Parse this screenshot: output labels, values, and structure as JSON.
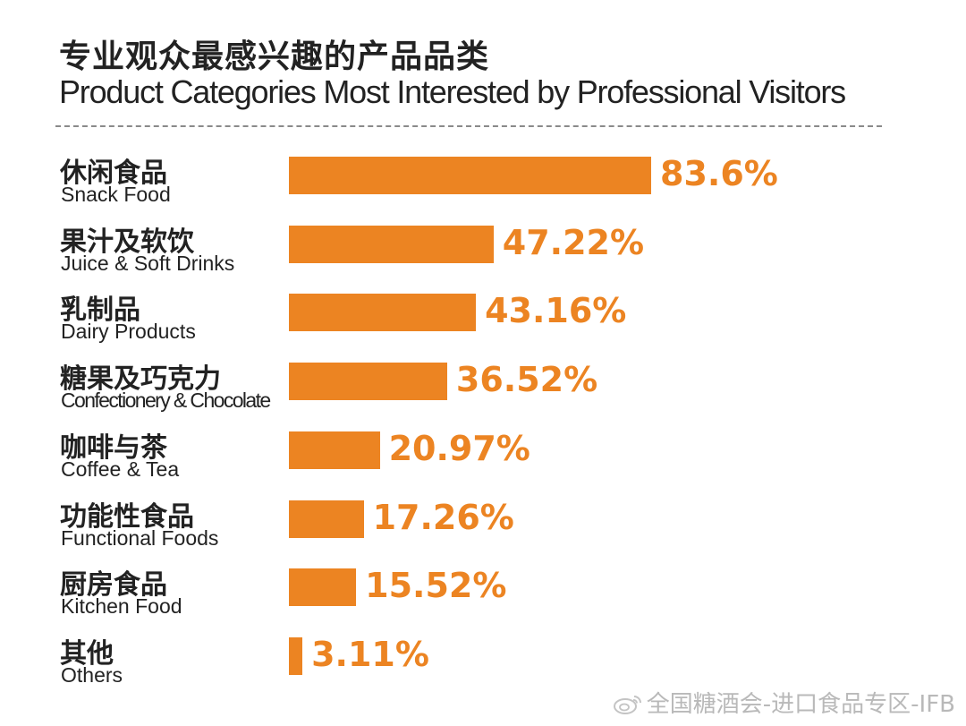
{
  "title_zh": "专业观众最感兴趣的产品品类",
  "title_en": "Product Categories Most Interested by Professional Visitors",
  "chart_data": {
    "type": "bar",
    "orientation": "horizontal",
    "categories": [
      {
        "zh": "休闲食品",
        "en": "Snack Food"
      },
      {
        "zh": "果汁及软饮",
        "en": "Juice & Soft Drinks"
      },
      {
        "zh": "乳制品",
        "en": "Dairy Products"
      },
      {
        "zh": "糖果及巧克力",
        "en": "Confectionery & Chocolate"
      },
      {
        "zh": "咖啡与茶",
        "en": "Coffee & Tea"
      },
      {
        "zh": "功能性食品",
        "en": "Functional Foods"
      },
      {
        "zh": "厨房食品",
        "en": "Kitchen Food"
      },
      {
        "zh": "其他",
        "en": "Others"
      }
    ],
    "values": [
      83.6,
      47.22,
      43.16,
      36.52,
      20.97,
      17.26,
      15.52,
      3.11
    ],
    "value_labels": [
      "83.6%",
      "47.22%",
      "43.16%",
      "36.52%",
      "20.97%",
      "17.26%",
      "15.52%",
      "3.11%"
    ],
    "unit": "%",
    "bar_color": "#ec8422"
  },
  "watermark": "全国糖酒会-进口食品专区-IFB"
}
